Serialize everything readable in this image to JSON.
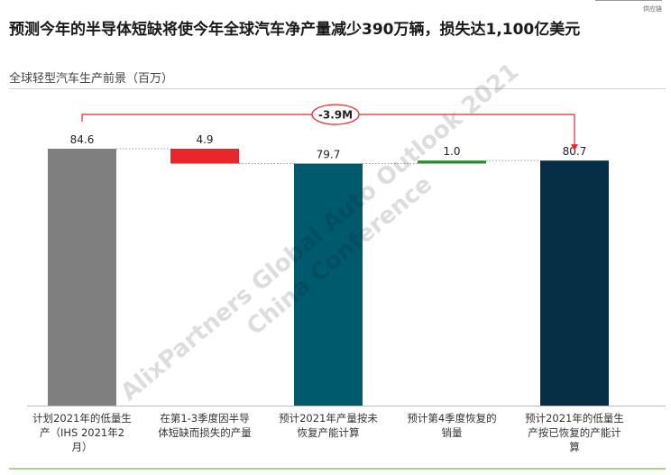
{
  "corner_label": "供应链",
  "title": "预测今年的半导体短缺将使今年全球汽车净产量减少390万辆，损失达1,100亿美元",
  "chart_data": {
    "type": "waterfall",
    "title": "",
    "subtitle": "全球轻型汽车生产前景（百万）",
    "categories": [
      "计划2021年的低量生产（IHS 2021年2月）",
      "在第1-3季度因半导体短缺而损失的产量",
      "预计2021年产量按未恢复产能计算",
      "预计第4季度恢复的销量",
      "预计2021年的低量生产按已恢复的产能计算"
    ],
    "values": [
      84.6,
      -4.9,
      79.7,
      1.0,
      80.7
    ],
    "value_labels": [
      "84.6",
      "4.9",
      "79.7",
      "1.0",
      "80.7"
    ],
    "bar_kinds": [
      "total",
      "decrease",
      "total",
      "increase",
      "total"
    ],
    "colors": [
      "#7f7f7f",
      "#e8262b",
      "#005a6e",
      "#2e8b35",
      "#062f45"
    ],
    "annotation": {
      "label": "-3.9M",
      "from": 0,
      "to": 4,
      "color": "#e8262b"
    },
    "watermark": "AlixPartners Global Auto Outlook 2021 China Conference",
    "ylim": [
      0,
      84.6
    ],
    "grid": false,
    "legend": "none"
  }
}
